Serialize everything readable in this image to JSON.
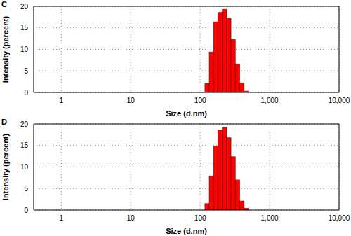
{
  "chart_data": [
    {
      "type": "histogram",
      "title": "C",
      "x_label": "Size (d.nm)",
      "y_label": "Intensity (percent)",
      "bins": [
        117,
        135,
        156,
        180,
        208,
        241,
        278,
        321,
        371,
        429,
        496
      ],
      "counts": [
        2.1,
        9.4,
        16.4,
        18.6,
        19.3,
        17.2,
        12.3,
        6.6,
        2.2,
        0.3
      ],
      "color": "#ff0000",
      "log": "x",
      "xlim": [
        0.4,
        10000
      ],
      "xticks": [
        1,
        10,
        100,
        {
          "value": 1000,
          "label": "1,000"
        },
        {
          "value": 10000,
          "label": "10,000"
        }
      ],
      "ylim": [
        0,
        20
      ],
      "yticks": [
        0,
        5,
        10,
        15,
        20
      ],
      "grid": true
    },
    {
      "type": "histogram",
      "title": "D",
      "x_label": "Size (d.nm)",
      "y_label": "Intensity (percent)",
      "bins": [
        117,
        135,
        156,
        180,
        208,
        241,
        278,
        321,
        371,
        429,
        496
      ],
      "counts": [
        1.5,
        7.9,
        14.9,
        18.6,
        19.2,
        16.8,
        12.4,
        7.0,
        2.1,
        0.4
      ],
      "color": "#ff0000",
      "log": "x",
      "xlim": [
        0.4,
        10000
      ],
      "xticks": [
        1,
        10,
        100,
        {
          "value": 1000,
          "label": "1,000"
        },
        {
          "value": 10000,
          "label": "10,000"
        }
      ],
      "ylim": [
        0,
        20
      ],
      "yticks": [
        0,
        5,
        10,
        15,
        20
      ],
      "grid": true
    }
  ]
}
